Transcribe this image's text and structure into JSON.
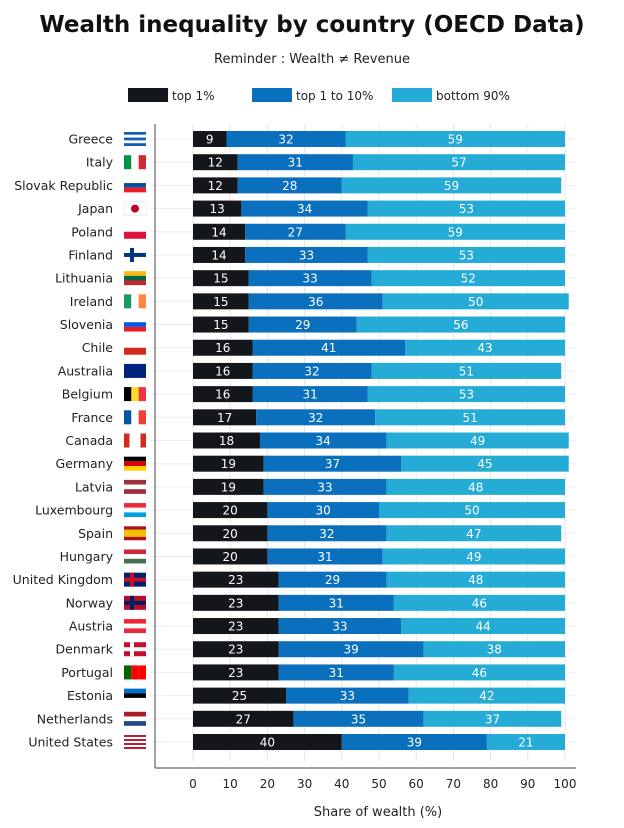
{
  "chart_data": {
    "type": "bar",
    "orientation": "horizontal",
    "stacked": true,
    "title": "Wealth inequality by country (OECD Data)",
    "subtitle": "Reminder : Wealth ≠ Revenue",
    "xlabel": "Share of wealth (%)",
    "xlim": [
      0,
      100
    ],
    "xticks": [
      0,
      10,
      20,
      30,
      40,
      50,
      60,
      70,
      80,
      90,
      100
    ],
    "grid": true,
    "legend_placement": "top",
    "categories": [
      "Greece",
      "Italy",
      "Slovak Republic",
      "Japan",
      "Poland",
      "Finland",
      "Lithuania",
      "Ireland",
      "Slovenia",
      "Chile",
      "Australia",
      "Belgium",
      "France",
      "Canada",
      "Germany",
      "Latvia",
      "Luxembourg",
      "Spain",
      "Hungary",
      "United Kingdom",
      "Norway",
      "Austria",
      "Denmark",
      "Portugal",
      "Estonia",
      "Netherlands",
      "United States"
    ],
    "series": [
      {
        "name": "top 1%",
        "color": "#13171c",
        "values": [
          9,
          12,
          12,
          13,
          14,
          14,
          15,
          15,
          15,
          16,
          16,
          16,
          17,
          18,
          19,
          19,
          20,
          20,
          20,
          23,
          23,
          23,
          23,
          23,
          25,
          27,
          40
        ]
      },
      {
        "name": "top 1 to 10%",
        "color": "#0a6fbd",
        "values": [
          32,
          31,
          28,
          34,
          27,
          33,
          33,
          36,
          29,
          41,
          32,
          31,
          32,
          34,
          37,
          33,
          30,
          32,
          31,
          29,
          31,
          33,
          39,
          31,
          33,
          35,
          39
        ]
      },
      {
        "name": "bottom 90%",
        "color": "#24acd6",
        "values": [
          59,
          57,
          59,
          53,
          59,
          53,
          52,
          50,
          56,
          43,
          51,
          53,
          51,
          49,
          45,
          48,
          50,
          47,
          49,
          48,
          46,
          44,
          38,
          46,
          42,
          37,
          21
        ]
      }
    ]
  },
  "flags": {
    "Greece": {
      "dir": "h",
      "colors": [
        "#0d5eaf",
        "#ffffff",
        "#0d5eaf",
        "#ffffff",
        "#0d5eaf"
      ]
    },
    "Italy": {
      "dir": "v",
      "colors": [
        "#009246",
        "#ffffff",
        "#ce2b37"
      ]
    },
    "Slovak Republic": {
      "dir": "h",
      "colors": [
        "#ffffff",
        "#0b4ea2",
        "#ee1c25"
      ]
    },
    "Japan": {
      "dir": "dot",
      "colors": [
        "#ffffff",
        "#bc002d"
      ]
    },
    "Poland": {
      "dir": "h",
      "colors": [
        "#ffffff",
        "#dc143c"
      ]
    },
    "Finland": {
      "dir": "cross",
      "colors": [
        "#ffffff",
        "#003580"
      ]
    },
    "Lithuania": {
      "dir": "h",
      "colors": [
        "#fdb913",
        "#006a44",
        "#c1272d"
      ]
    },
    "Ireland": {
      "dir": "v",
      "colors": [
        "#169b62",
        "#ffffff",
        "#ff883e"
      ]
    },
    "Slovenia": {
      "dir": "h",
      "colors": [
        "#ffffff",
        "#005ce5",
        "#ed1c24"
      ]
    },
    "Chile": {
      "dir": "h",
      "colors": [
        "#ffffff",
        "#d52b1e"
      ]
    },
    "Australia": {
      "dir": "h",
      "colors": [
        "#00247d"
      ]
    },
    "Belgium": {
      "dir": "v",
      "colors": [
        "#000000",
        "#fdda24",
        "#ef3340"
      ]
    },
    "France": {
      "dir": "v",
      "colors": [
        "#0055a4",
        "#ffffff",
        "#ef4135"
      ]
    },
    "Canada": {
      "dir": "v",
      "colors": [
        "#d52b1e",
        "#ffffff",
        "#ffffff",
        "#d52b1e"
      ]
    },
    "Germany": {
      "dir": "h",
      "colors": [
        "#000000",
        "#dd0000",
        "#ffce00"
      ]
    },
    "Latvia": {
      "dir": "h",
      "colors": [
        "#9e3039",
        "#ffffff",
        "#9e3039"
      ]
    },
    "Luxembourg": {
      "dir": "h",
      "colors": [
        "#ed2939",
        "#ffffff",
        "#00a1de"
      ]
    },
    "Spain": {
      "dir": "h",
      "colors": [
        "#aa151b",
        "#f1bf00",
        "#f1bf00",
        "#aa151b"
      ]
    },
    "Hungary": {
      "dir": "h",
      "colors": [
        "#ce2939",
        "#ffffff",
        "#477050"
      ]
    },
    "United Kingdom": {
      "dir": "cross",
      "colors": [
        "#012169",
        "#c8102e"
      ]
    },
    "Norway": {
      "dir": "cross",
      "colors": [
        "#ba0c2f",
        "#00205b"
      ]
    },
    "Austria": {
      "dir": "h",
      "colors": [
        "#ed2939",
        "#ffffff",
        "#ed2939"
      ]
    },
    "Denmark": {
      "dir": "cross",
      "colors": [
        "#c60c30",
        "#ffffff"
      ]
    },
    "Portugal": {
      "dir": "v",
      "colors": [
        "#006600",
        "#ff0000",
        "#ff0000"
      ]
    },
    "Estonia": {
      "dir": "h",
      "colors": [
        "#0072ce",
        "#000000",
        "#ffffff"
      ]
    },
    "Netherlands": {
      "dir": "h",
      "colors": [
        "#ae1c28",
        "#ffffff",
        "#21468b"
      ]
    },
    "United States": {
      "dir": "h",
      "colors": [
        "#b22234",
        "#ffffff",
        "#b22234",
        "#ffffff",
        "#b22234",
        "#ffffff",
        "#b22234"
      ]
    }
  }
}
